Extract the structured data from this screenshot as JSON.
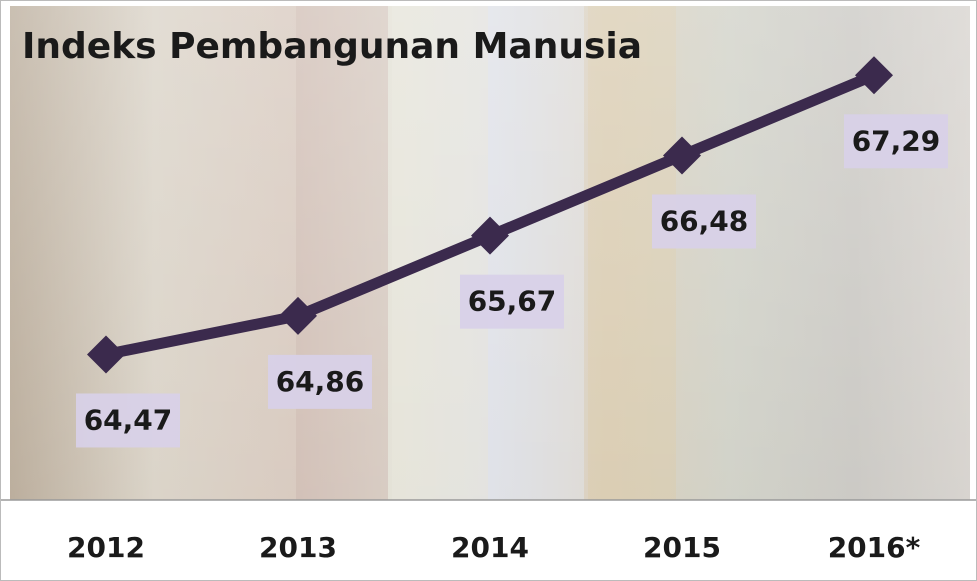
{
  "chart_data": {
    "type": "line",
    "title": "Indeks Pembangunan Manusia",
    "categories": [
      "2012",
      "2013",
      "2014",
      "2015",
      "2016*"
    ],
    "values": [
      64.47,
      64.86,
      65.67,
      66.48,
      67.29
    ],
    "value_labels": [
      "64,47",
      "64,86",
      "65,67",
      "66,48",
      "67,29"
    ],
    "color": "#3b2a4d",
    "ylim": [
      63,
      68
    ]
  }
}
